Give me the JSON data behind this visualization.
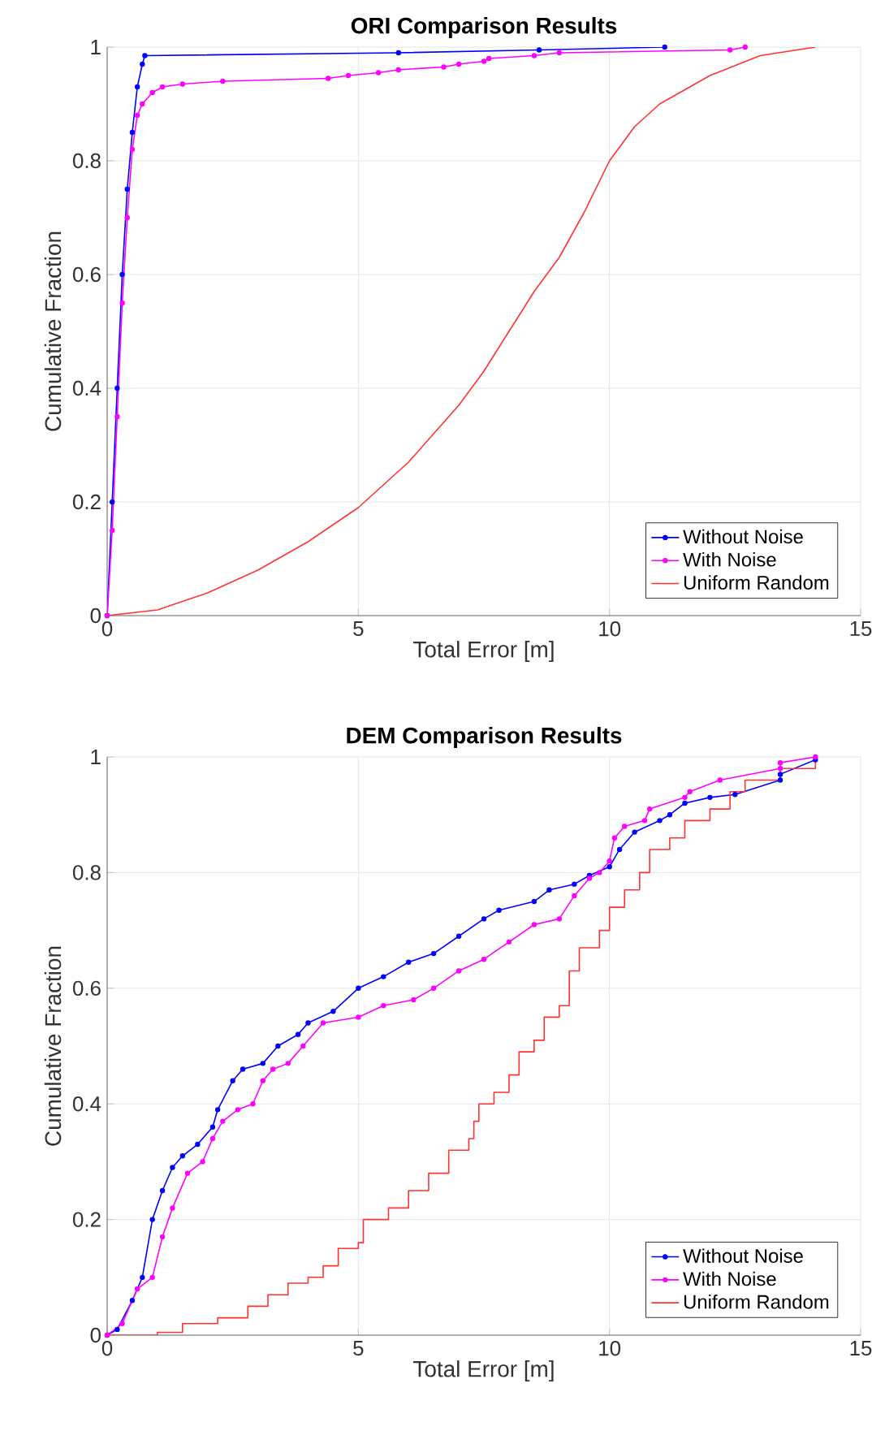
{
  "chart_data": [
    {
      "type": "line",
      "title": "ORI Comparison Results",
      "xlabel": "Total Error [m]",
      "ylabel": "Cumulative Fraction",
      "xlim": [
        0,
        15
      ],
      "ylim": [
        0,
        1
      ],
      "xticks": [
        0,
        5,
        10,
        15
      ],
      "yticks": [
        0,
        0.2,
        0.4,
        0.6,
        0.8,
        1
      ],
      "grid": true,
      "legend": "bottom right",
      "series": [
        {
          "name": "Without Noise",
          "color": "#0000ff",
          "marker": "circle",
          "x": [
            0,
            0.1,
            0.2,
            0.3,
            0.4,
            0.5,
            0.6,
            0.7,
            0.75,
            5.8,
            8.6,
            11.1
          ],
          "values": [
            0,
            0.2,
            0.4,
            0.6,
            0.75,
            0.85,
            0.93,
            0.97,
            0.985,
            0.99,
            0.995,
            1.0
          ]
        },
        {
          "name": "With Noise",
          "color": "#ff00ff",
          "marker": "circle",
          "x": [
            0,
            0.1,
            0.2,
            0.3,
            0.4,
            0.5,
            0.6,
            0.7,
            0.9,
            1.1,
            1.5,
            2.3,
            4.4,
            4.8,
            5.4,
            5.8,
            6.7,
            7.0,
            7.5,
            7.6,
            8.5,
            9.0,
            12.4,
            12.7
          ],
          "values": [
            0,
            0.15,
            0.35,
            0.55,
            0.7,
            0.82,
            0.88,
            0.9,
            0.92,
            0.93,
            0.935,
            0.94,
            0.945,
            0.95,
            0.955,
            0.96,
            0.965,
            0.97,
            0.975,
            0.98,
            0.985,
            0.99,
            0.995,
            1.0
          ]
        },
        {
          "name": "Uniform Random",
          "color": "#ff3333",
          "marker": "none",
          "x": [
            0,
            1,
            2,
            3,
            4,
            5,
            6,
            7,
            7.5,
            8,
            8.5,
            9,
            9.5,
            10,
            10.5,
            11,
            12,
            13,
            14.1
          ],
          "values": [
            0,
            0.01,
            0.04,
            0.08,
            0.13,
            0.19,
            0.27,
            0.37,
            0.43,
            0.5,
            0.57,
            0.63,
            0.71,
            0.8,
            0.86,
            0.9,
            0.95,
            0.985,
            1.0
          ]
        }
      ]
    },
    {
      "type": "line",
      "title": "DEM Comparison Results",
      "xlabel": "Total Error [m]",
      "ylabel": "Cumulative Fraction",
      "xlim": [
        0,
        15
      ],
      "ylim": [
        0,
        1
      ],
      "xticks": [
        0,
        5,
        10,
        15
      ],
      "yticks": [
        0,
        0.2,
        0.4,
        0.6,
        0.8,
        1
      ],
      "grid": true,
      "legend": "bottom right",
      "series": [
        {
          "name": "Without Noise",
          "color": "#0000ff",
          "marker": "circle",
          "x": [
            0,
            0.2,
            0.5,
            0.7,
            0.9,
            1.1,
            1.3,
            1.5,
            1.8,
            2.1,
            2.2,
            2.5,
            2.7,
            3.1,
            3.4,
            3.8,
            4.0,
            4.5,
            5.0,
            5.5,
            6.0,
            6.5,
            7.0,
            7.5,
            7.8,
            8.5,
            8.8,
            9.3,
            9.6,
            10.0,
            10.2,
            10.5,
            11.0,
            11.2,
            11.5,
            12.0,
            12.5,
            13.4,
            13.4,
            14.1
          ],
          "values": [
            0,
            0.01,
            0.06,
            0.1,
            0.2,
            0.25,
            0.29,
            0.31,
            0.33,
            0.36,
            0.39,
            0.44,
            0.46,
            0.47,
            0.5,
            0.52,
            0.54,
            0.56,
            0.6,
            0.62,
            0.645,
            0.66,
            0.69,
            0.72,
            0.735,
            0.75,
            0.77,
            0.78,
            0.795,
            0.81,
            0.84,
            0.87,
            0.89,
            0.9,
            0.92,
            0.93,
            0.935,
            0.96,
            0.97,
            0.995
          ]
        },
        {
          "name": "With Noise",
          "color": "#ff00ff",
          "marker": "circle",
          "x": [
            0,
            0.3,
            0.6,
            0.9,
            1.1,
            1.3,
            1.6,
            1.9,
            2.1,
            2.3,
            2.6,
            2.9,
            3.1,
            3.3,
            3.6,
            3.9,
            4.3,
            5.0,
            5.5,
            6.1,
            6.5,
            7.0,
            7.5,
            8.0,
            8.5,
            9.0,
            9.3,
            9.6,
            9.8,
            10.0,
            10.1,
            10.3,
            10.7,
            10.8,
            11.5,
            11.6,
            12.2,
            13.4,
            13.4,
            14.1
          ],
          "values": [
            0,
            0.02,
            0.08,
            0.1,
            0.17,
            0.22,
            0.28,
            0.3,
            0.34,
            0.37,
            0.39,
            0.4,
            0.44,
            0.46,
            0.47,
            0.5,
            0.54,
            0.55,
            0.57,
            0.58,
            0.6,
            0.63,
            0.65,
            0.68,
            0.71,
            0.72,
            0.76,
            0.79,
            0.8,
            0.82,
            0.86,
            0.88,
            0.89,
            0.91,
            0.93,
            0.94,
            0.96,
            0.98,
            0.99,
            1.0
          ]
        },
        {
          "name": "Uniform Random",
          "type": "step",
          "color": "#ff3333",
          "marker": "none",
          "x": [
            0,
            1,
            1.5,
            2.2,
            2.8,
            3.2,
            3.6,
            4.0,
            4.3,
            4.6,
            5.0,
            5.1,
            5.6,
            6.0,
            6.4,
            6.8,
            7.2,
            7.3,
            7.4,
            7.7,
            8.0,
            8.2,
            8.5,
            8.7,
            9.0,
            9.2,
            9.4,
            9.8,
            10.0,
            10.3,
            10.6,
            10.8,
            11.2,
            11.5,
            12.0,
            12.4,
            12.7,
            13.4,
            14.1
          ],
          "values": [
            0,
            0.005,
            0.02,
            0.03,
            0.05,
            0.07,
            0.09,
            0.1,
            0.12,
            0.15,
            0.16,
            0.2,
            0.22,
            0.25,
            0.28,
            0.32,
            0.34,
            0.37,
            0.4,
            0.42,
            0.45,
            0.49,
            0.51,
            0.55,
            0.57,
            0.63,
            0.67,
            0.7,
            0.74,
            0.77,
            0.8,
            0.84,
            0.86,
            0.89,
            0.91,
            0.94,
            0.96,
            0.98,
            0.995
          ]
        }
      ]
    }
  ]
}
